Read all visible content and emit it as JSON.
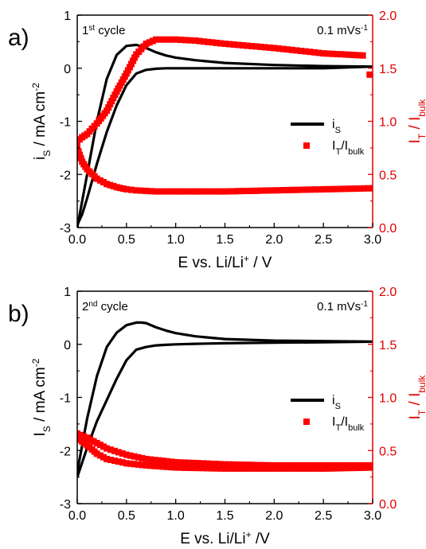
{
  "colors": {
    "left_axis": "#000000",
    "right_axis": "#e00000",
    "curve": "#000000",
    "markers": "#ff0000"
  },
  "chart_data": [
    {
      "type": "line",
      "panel_label": "a)",
      "cycle_text": {
        "main": "1",
        "sup": "st",
        "rest": " cycle"
      },
      "rate_text": {
        "main": "0.1 mVs",
        "sup": "-1"
      },
      "xlabel": {
        "a": "E vs. Li/Li",
        "sup": "+",
        "b": " / V"
      },
      "ylabel": {
        "a": "i",
        "sub": "S",
        "b": " / mA cm",
        "sup": "-2"
      },
      "ylabel_right": {
        "a": "I",
        "sub1": "T",
        "b": " / I",
        "sub2": "bulk"
      },
      "xlim": [
        0,
        3
      ],
      "ylim": [
        -3,
        1
      ],
      "y2lim": [
        0,
        2
      ],
      "xticks": [
        "0.0",
        "0.5",
        "1.0",
        "1.5",
        "2.0",
        "2.5",
        "3.0"
      ],
      "yticks": [
        "-3",
        "-2",
        "-1",
        "0",
        "1"
      ],
      "y2ticks": [
        "0.0",
        "0.5",
        "1.0",
        "1.5",
        "2.0"
      ],
      "grid": false,
      "legend": {
        "placement": "right",
        "entries": [
          {
            "a": "i",
            "sub": "S"
          },
          {
            "a": "I",
            "sub1": "T",
            "b": "/I",
            "sub2": "bulk"
          }
        ]
      },
      "series": [
        {
          "axis": "left",
          "style": "line",
          "x": [
            0.0,
            0.1,
            0.2,
            0.3,
            0.4,
            0.5,
            0.6,
            0.7,
            0.8,
            0.9,
            1.0,
            1.2,
            1.5,
            2.0,
            2.5,
            3.0,
            2.5,
            2.0,
            1.5,
            1.2,
            1.0,
            0.9,
            0.8,
            0.7,
            0.6,
            0.5,
            0.4,
            0.3,
            0.2,
            0.1,
            0.05,
            0.0
          ],
          "y": [
            -3.0,
            -2.0,
            -1.0,
            -0.2,
            0.25,
            0.42,
            0.44,
            0.38,
            0.3,
            0.24,
            0.2,
            0.15,
            0.1,
            0.06,
            0.04,
            0.03,
            0.0,
            0.0,
            0.0,
            0.0,
            0.0,
            0.0,
            -0.01,
            -0.03,
            -0.1,
            -0.32,
            -0.7,
            -1.2,
            -1.8,
            -2.45,
            -2.75,
            -2.95
          ]
        },
        {
          "axis": "right",
          "style": "markers",
          "x": [
            0.0,
            0.05,
            0.1,
            0.15,
            0.2,
            0.3,
            0.4,
            0.5,
            0.6,
            0.7,
            0.8,
            0.9,
            1.0,
            1.2,
            1.5,
            2.0,
            2.5,
            2.9
          ],
          "y": [
            0.81,
            0.85,
            0.88,
            0.93,
            0.98,
            1.1,
            1.28,
            1.45,
            1.63,
            1.73,
            1.77,
            1.77,
            1.77,
            1.76,
            1.73,
            1.69,
            1.64,
            1.62
          ]
        },
        {
          "axis": "right",
          "style": "markers",
          "x": [
            0.0,
            0.05,
            0.1,
            0.2,
            0.3,
            0.4,
            0.5,
            0.6,
            0.8,
            1.0,
            1.5,
            2.0,
            2.5,
            3.0
          ],
          "y": [
            0.75,
            0.62,
            0.55,
            0.46,
            0.41,
            0.38,
            0.36,
            0.35,
            0.34,
            0.34,
            0.34,
            0.35,
            0.36,
            0.37
          ]
        },
        {
          "axis": "right",
          "style": "markers",
          "x": [
            2.97
          ],
          "y": [
            1.44
          ]
        }
      ]
    },
    {
      "type": "line",
      "panel_label": "b)",
      "cycle_text": {
        "main": "2",
        "sup": "nd",
        "rest": " cycle"
      },
      "rate_text": {
        "main": "0.1 mVs",
        "sup": "-1"
      },
      "xlabel": {
        "a": "E vs. Li/Li",
        "sup": "+",
        "b": " /V"
      },
      "ylabel": {
        "a": "I",
        "sub": "S",
        "b": " / mA cm",
        "sup": "-2"
      },
      "ylabel_right": {
        "a": "I",
        "sub1": "T",
        "b": " / I",
        "sub2": "bulk"
      },
      "xlim": [
        0,
        3
      ],
      "ylim": [
        -3,
        1
      ],
      "y2lim": [
        0,
        2
      ],
      "xticks": [
        "0.0",
        "0.5",
        "1.0",
        "1.5",
        "2.0",
        "2.5",
        "3.0"
      ],
      "yticks": [
        "-3",
        "-2",
        "-1",
        "0",
        "1"
      ],
      "y2ticks": [
        "0.0",
        "0.5",
        "1.0",
        "1.5",
        "2.0"
      ],
      "grid": false,
      "legend": {
        "placement": "right",
        "entries": [
          {
            "a": "i",
            "sub": "S"
          },
          {
            "a": "I",
            "sub1": "T",
            "b": "/I",
            "sub2": "bulk"
          }
        ]
      },
      "series": [
        {
          "axis": "left",
          "style": "line",
          "x": [
            0.0,
            0.1,
            0.2,
            0.3,
            0.4,
            0.5,
            0.6,
            0.65,
            0.7,
            0.8,
            0.9,
            1.0,
            1.2,
            1.5,
            2.0,
            2.5,
            3.0,
            2.5,
            2.0,
            1.5,
            1.2,
            1.0,
            0.9,
            0.8,
            0.7,
            0.6,
            0.5,
            0.4,
            0.3,
            0.2,
            0.1,
            0.0
          ],
          "y": [
            -2.4,
            -1.4,
            -0.6,
            -0.05,
            0.22,
            0.36,
            0.41,
            0.41,
            0.4,
            0.32,
            0.26,
            0.21,
            0.15,
            0.1,
            0.07,
            0.06,
            0.05,
            0.04,
            0.03,
            0.02,
            0.01,
            0.0,
            -0.01,
            -0.02,
            -0.05,
            -0.1,
            -0.3,
            -0.65,
            -1.05,
            -1.45,
            -1.95,
            -2.5
          ]
        },
        {
          "axis": "right",
          "style": "markers",
          "x": [
            0.0,
            0.1,
            0.2,
            0.3,
            0.5,
            0.7,
            1.0,
            1.5,
            2.0,
            2.5,
            3.0
          ],
          "y": [
            0.66,
            0.62,
            0.57,
            0.52,
            0.46,
            0.42,
            0.39,
            0.37,
            0.36,
            0.36,
            0.36
          ]
        },
        {
          "axis": "right",
          "style": "markers",
          "x": [
            0.0,
            0.1,
            0.2,
            0.3,
            0.5,
            0.7,
            1.0,
            1.5,
            2.0,
            2.5,
            3.0
          ],
          "y": [
            0.62,
            0.55,
            0.47,
            0.42,
            0.38,
            0.36,
            0.34,
            0.33,
            0.33,
            0.33,
            0.34
          ]
        }
      ]
    }
  ]
}
